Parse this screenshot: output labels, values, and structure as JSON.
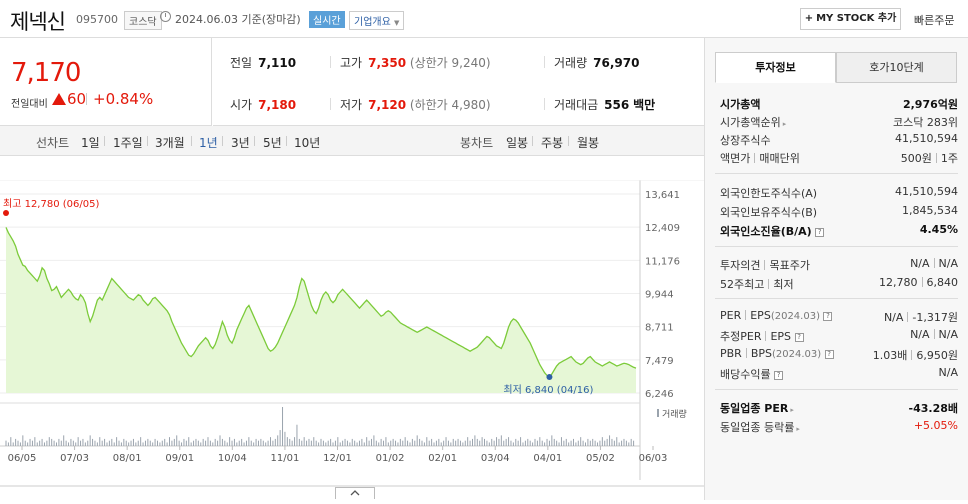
{
  "header": {
    "title": "제넥신",
    "code": "095700",
    "market": "코스닥",
    "date": "2024.06.03",
    "basis": "기준(장마감)",
    "realtime": "실시간",
    "company_info": "기업개요",
    "mystock": "MY STOCK 추가",
    "quick_order": "빠른주문"
  },
  "price": {
    "current": "7,170",
    "change_label": "전일대비",
    "change": "60",
    "change_pct": "+0.84%",
    "direction": "up",
    "color_up": "#e3190b"
  },
  "quote": {
    "prev_label": "전일",
    "prev": "7,110",
    "high_label": "고가",
    "high": "7,350",
    "upper_label": "(상한가",
    "upper": "9,240)",
    "volume_label": "거래량",
    "volume": "76,970",
    "open_label": "시가",
    "open": "7,180",
    "low_label": "저가",
    "low": "7,120",
    "lower_label": "(하한가",
    "lower": "4,980)",
    "amount_label": "거래대금",
    "amount": "556",
    "amount_unit": "백만"
  },
  "chart_toolbar": {
    "line_label": "선차트",
    "periods": [
      "1일",
      "1주일",
      "3개월",
      "1년",
      "3년",
      "5년",
      "10년"
    ],
    "selected": "1년",
    "candle_label": "봉차트",
    "candles": [
      "일봉",
      "주봉",
      "월봉"
    ]
  },
  "chart_data": {
    "type": "area",
    "yticks": [
      "13,641",
      "12,409",
      "11,176",
      "9,944",
      "8,711",
      "7,479",
      "6,246"
    ],
    "ylim": [
      6246,
      13641
    ],
    "xticks": [
      "06/05",
      "07/03",
      "08/01",
      "09/01",
      "10/04",
      "11/01",
      "12/01",
      "01/02",
      "02/01",
      "03/04",
      "04/01",
      "05/02",
      "06/03"
    ],
    "high_label": "최고 12,780 (06/05)",
    "low_label": "최저 6,840 (04/16)",
    "volume_label": "거래량",
    "line_color": "#7ccb3a",
    "fill_color": "#e6f7d6",
    "prices": [
      12400,
      12200,
      12050,
      11900,
      11700,
      11400,
      11200,
      11000,
      10950,
      10800,
      10700,
      10600,
      10500,
      10400,
      10600,
      10900,
      10800,
      10500,
      10300,
      10050,
      10100,
      10200,
      10000,
      9800,
      9900,
      10000,
      10100,
      10000,
      9850,
      9750,
      9700,
      9900,
      9800,
      9600,
      9200,
      8900,
      9100,
      9400,
      9700,
      9800,
      9700,
      9900,
      10100,
      10300,
      10500,
      10400,
      10300,
      10200,
      10100,
      10000,
      9900,
      9800,
      9750,
      9700,
      9800,
      9900,
      9850,
      9700,
      9600,
      9500,
      9600,
      9750,
      9800,
      9700,
      9600,
      9500,
      9400,
      9300,
      9150,
      8900,
      8700,
      8500,
      8300,
      8100,
      7950,
      7800,
      7650,
      7600,
      7700,
      7850,
      8000,
      8100,
      8200,
      8300,
      8200,
      8000,
      7900,
      8050,
      8300,
      8600,
      8900,
      8700,
      8400,
      8200,
      8100,
      8300,
      8600,
      8800,
      9000,
      9200,
      9400,
      9500,
      9300,
      9100,
      8900,
      8700,
      8500,
      8300,
      8100,
      7900,
      7800,
      7850,
      7950,
      8100,
      8300,
      8500,
      8700,
      8900,
      9100,
      9300,
      9500,
      9800,
      10200,
      10500,
      10400,
      10100,
      9800,
      9500,
      9300,
      9200,
      9400,
      9700,
      9900,
      10000,
      9900,
      9700,
      9600,
      9700,
      9900,
      10000,
      10100,
      10000,
      9900,
      9800,
      9700,
      9600,
      9500,
      9400,
      9500,
      9600,
      9700,
      9600,
      9500,
      9400,
      9300,
      9200,
      9100,
      9150,
      9250,
      9300,
      9250,
      9150,
      9050,
      8950,
      8850,
      8800,
      8750,
      8700,
      8650,
      8600,
      8550,
      8500,
      8550,
      8600,
      8650,
      8700,
      8650,
      8600,
      8550,
      8500,
      8450,
      8400,
      8350,
      8300,
      8250,
      8200,
      8150,
      8100,
      8050,
      8000,
      7950,
      7900,
      7850,
      7800,
      7850,
      7900,
      7950,
      8050,
      8150,
      8250,
      8350,
      8300,
      8200,
      8100,
      8000,
      7950,
      7900,
      8100,
      8400,
      8700,
      8900,
      9000,
      8950,
      8850,
      8700,
      8550,
      8400,
      8250,
      8100,
      7900,
      7700,
      7500,
      7300,
      7150,
      7000,
      6900,
      6840,
      6950,
      7100,
      7250,
      7350,
      7400,
      7450,
      7500,
      7550,
      7600,
      7500,
      7400,
      7350,
      7300,
      7350,
      7450,
      7550,
      7600,
      7500,
      7400,
      7350,
      7300,
      7250,
      7300,
      7350,
      7400,
      7350,
      7300,
      7250,
      7280,
      7320,
      7350,
      7330,
      7300,
      7250,
      7200,
      7170
    ],
    "volumes": [
      3,
      2,
      5,
      2,
      4,
      3,
      2,
      6,
      3,
      2,
      4,
      3,
      5,
      2,
      3,
      4,
      2,
      3,
      5,
      4,
      3,
      2,
      4,
      3,
      6,
      3,
      2,
      4,
      3,
      2,
      5,
      3,
      4,
      2,
      3,
      6,
      4,
      3,
      2,
      5,
      3,
      4,
      2,
      3,
      4,
      2,
      5,
      3,
      2,
      4,
      3,
      2,
      3,
      4,
      2,
      3,
      5,
      2,
      3,
      4,
      3,
      2,
      4,
      3,
      2,
      3,
      4,
      2,
      5,
      3,
      4,
      6,
      3,
      2,
      4,
      3,
      5,
      2,
      3,
      4,
      3,
      2,
      4,
      3,
      5,
      3,
      2,
      4,
      3,
      6,
      4,
      3,
      2,
      5,
      3,
      4,
      2,
      3,
      4,
      2,
      3,
      5,
      3,
      2,
      4,
      3,
      4,
      3,
      2,
      3,
      5,
      3,
      4,
      6,
      9,
      22,
      8,
      5,
      4,
      3,
      5,
      12,
      4,
      3,
      5,
      3,
      4,
      3,
      5,
      3,
      2,
      4,
      3,
      2,
      3,
      4,
      2,
      3,
      5,
      2,
      3,
      4,
      3,
      2,
      4,
      3,
      2,
      3,
      4,
      2,
      5,
      3,
      4,
      6,
      3,
      2,
      4,
      3,
      5,
      2,
      3,
      4,
      3,
      2,
      4,
      3,
      5,
      3,
      2,
      4,
      3,
      6,
      4,
      3,
      2,
      5,
      3,
      4,
      2,
      3,
      4,
      2,
      3,
      5,
      3,
      2,
      4,
      3,
      4,
      3,
      2,
      3,
      5,
      3,
      4,
      6,
      4,
      3,
      5,
      4,
      3,
      2,
      4,
      3,
      5,
      4,
      6,
      3,
      4,
      5,
      3,
      2,
      4,
      3,
      5,
      2,
      3,
      4,
      3,
      2,
      4,
      3,
      5,
      3,
      2,
      4,
      3,
      6,
      4,
      3,
      2,
      5,
      3,
      4,
      2,
      3,
      4,
      2,
      3,
      5,
      3,
      2,
      4,
      3,
      4,
      3,
      2,
      3,
      5,
      3,
      4,
      6,
      4,
      3,
      5,
      2,
      3,
      4,
      3,
      2,
      4,
      3
    ]
  },
  "side": {
    "tab_active": "투자정보",
    "tab_other": "호가10단계",
    "market_cap_label": "시가총액",
    "market_cap": "2,976억원",
    "rank_label": "시가총액순위",
    "rank": "코스닥 283위",
    "shares_label": "상장주식수",
    "shares": "41,510,594",
    "par_label": "액면가",
    "unit_label": "매매단위",
    "par": "500원",
    "unit": "1주",
    "foreign_limit_label": "외국인한도주식수(A)",
    "foreign_limit": "41,510,594",
    "foreign_hold_label": "외국인보유주식수(B)",
    "foreign_hold": "1,845,534",
    "foreign_rate_label": "외국인소진율(B/A)",
    "foreign_rate": "4.45%",
    "opinion_label": "투자의견",
    "target_label": "목표주가",
    "opinion": "N/A",
    "target": "N/A",
    "week52_label": "52주최고",
    "week52_low_label": "최저",
    "week52_high": "12,780",
    "week52_low": "6,840",
    "per_label": "PER",
    "eps_label": "EPS",
    "eps_period": "(2024.03)",
    "per": "N/A",
    "eps": "-1,317원",
    "est_per_label": "추정PER",
    "est_eps_label": "EPS",
    "est_per": "N/A",
    "est_eps": "N/A",
    "pbr_label": "PBR",
    "bps_label": "BPS",
    "bps_period": "(2024.03)",
    "pbr": "1.03배",
    "bps": "6,950원",
    "div_label": "배당수익률",
    "div": "N/A",
    "ind_per_label": "동일업종 PER",
    "ind_per": "-43.28배",
    "ind_rate_label": "동일업종 등락률",
    "ind_rate": "+5.05%"
  }
}
